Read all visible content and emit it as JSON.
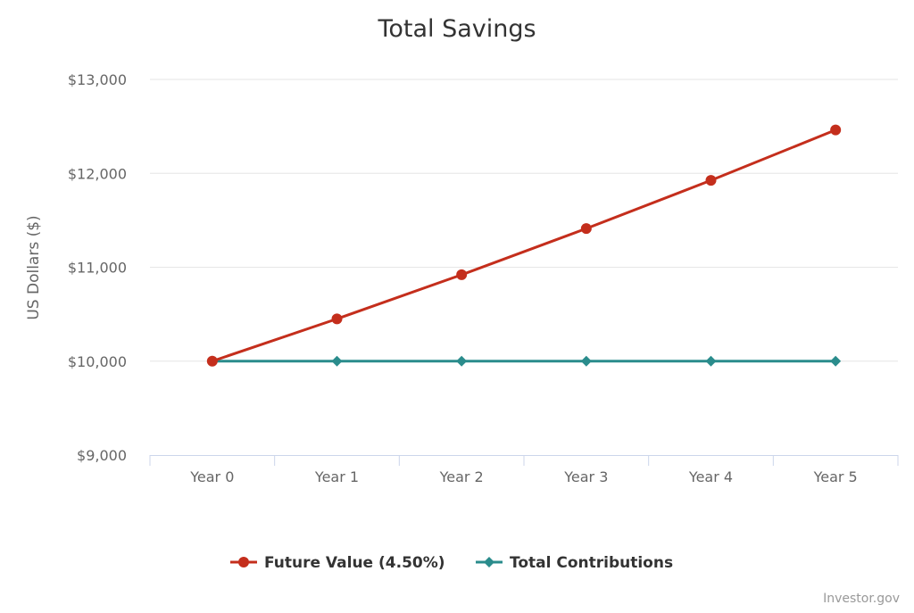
{
  "chart_data": {
    "type": "line",
    "title": "Total Savings",
    "ylabel": "US Dollars ($)",
    "xlabel": "",
    "categories": [
      "Year 0",
      "Year 1",
      "Year 2",
      "Year 3",
      "Year 4",
      "Year 5"
    ],
    "ylim": [
      9000,
      13000
    ],
    "yticks": [
      9000,
      10000,
      11000,
      12000,
      13000
    ],
    "ytick_labels": [
      "$9,000",
      "$10,000",
      "$11,000",
      "$12,000",
      "$13,000"
    ],
    "grid": true,
    "legend_position": "bottom-center",
    "series": [
      {
        "name": "Future Value (4.50%)",
        "color": "#c42e1c",
        "marker": "circle",
        "values": [
          10000,
          10450,
          10920,
          11412,
          11925,
          12462
        ]
      },
      {
        "name": "Total Contributions",
        "color": "#2a8c8c",
        "marker": "diamond",
        "values": [
          10000,
          10000,
          10000,
          10000,
          10000,
          10000
        ]
      }
    ],
    "credit": "Investor.gov"
  }
}
